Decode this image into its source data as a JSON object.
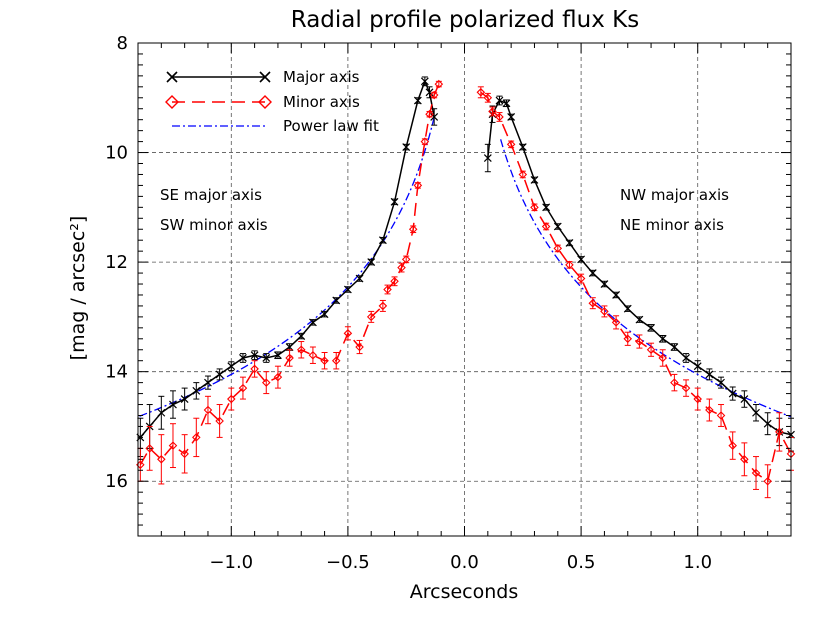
{
  "chart_data": {
    "type": "line",
    "title": "Radial profile polarized flux Ks",
    "xlabel": "Arcseconds",
    "ylabel": "[mag / arcsec²]",
    "xlim": [
      -1.4,
      1.4
    ],
    "ylim": [
      17,
      8
    ],
    "y_inverted": true,
    "grid": true,
    "legend_placement": "top-left",
    "x_ticks": [
      "−1.0",
      "−0.5",
      "0.0",
      "0.5",
      "1.0"
    ],
    "x_tick_values": [
      -1.0,
      -0.5,
      0.0,
      0.5,
      1.0
    ],
    "y_ticks": [
      "8",
      "10",
      "12",
      "14",
      "16"
    ],
    "y_tick_values": [
      8,
      10,
      12,
      14,
      16
    ],
    "annotations": {
      "left": [
        "SE major axis",
        "SW minor axis"
      ],
      "right": [
        "NW major axis",
        "NE minor axis"
      ]
    },
    "series": [
      {
        "name": "Major axis",
        "color": "#000000",
        "marker": "x",
        "segments": [
          {
            "x": [
              -1.39,
              -1.35,
              -1.3,
              -1.25,
              -1.2,
              -1.15,
              -1.1,
              -1.05,
              -1.0,
              -0.95,
              -0.9,
              -0.85,
              -0.8,
              -0.75,
              -0.7,
              -0.65,
              -0.6,
              -0.55,
              -0.5,
              -0.45,
              -0.4,
              -0.35,
              -0.3,
              -0.25,
              -0.2,
              -0.17,
              -0.15,
              -0.13
            ],
            "y": [
              15.2,
              15.0,
              14.75,
              14.6,
              14.5,
              14.35,
              14.2,
              14.05,
              13.9,
              13.75,
              13.7,
              13.75,
              13.7,
              13.55,
              13.35,
              13.1,
              12.95,
              12.7,
              12.5,
              12.3,
              12.0,
              11.6,
              10.9,
              9.9,
              9.05,
              8.7,
              8.9,
              9.35
            ],
            "err": [
              0.35,
              0.4,
              0.3,
              0.25,
              0.2,
              0.15,
              0.12,
              0.1,
              0.08,
              0.08,
              0.08,
              0.08,
              0.06,
              0.06,
              0.05,
              0.05,
              0.05,
              0.05,
              0.05,
              0.05,
              0.05,
              0.05,
              0.05,
              0.05,
              0.05,
              0.08,
              0.1,
              0.15
            ]
          },
          {
            "x": [
              0.1,
              0.12,
              0.15,
              0.18,
              0.2,
              0.25,
              0.3,
              0.35,
              0.4,
              0.45,
              0.5,
              0.55,
              0.6,
              0.65,
              0.7,
              0.75,
              0.8,
              0.85,
              0.9,
              0.95,
              1.0,
              1.05,
              1.1,
              1.15,
              1.2,
              1.25,
              1.3,
              1.35,
              1.4
            ],
            "y": [
              10.1,
              9.3,
              9.05,
              9.1,
              9.35,
              9.9,
              10.5,
              11.0,
              11.35,
              11.65,
              11.95,
              12.2,
              12.4,
              12.6,
              12.85,
              13.05,
              13.2,
              13.4,
              13.55,
              13.75,
              13.9,
              14.05,
              14.2,
              14.4,
              14.5,
              14.75,
              14.95,
              15.1,
              15.15
            ],
            "err": [
              0.25,
              0.15,
              0.08,
              0.06,
              0.05,
              0.05,
              0.05,
              0.05,
              0.05,
              0.05,
              0.05,
              0.05,
              0.05,
              0.05,
              0.05,
              0.05,
              0.06,
              0.06,
              0.06,
              0.08,
              0.1,
              0.1,
              0.1,
              0.12,
              0.15,
              0.15,
              0.2,
              0.25,
              0.3
            ]
          }
        ]
      },
      {
        "name": "Minor axis",
        "color": "#ff0000",
        "marker": "diamond",
        "segments": [
          {
            "x": [
              -1.39,
              -1.35,
              -1.3,
              -1.25,
              -1.2,
              -1.15,
              -1.1,
              -1.05,
              -1.0,
              -0.95,
              -0.9,
              -0.85,
              -0.8,
              -0.75,
              -0.7,
              -0.65,
              -0.6,
              -0.55,
              -0.5,
              -0.45,
              -0.4,
              -0.35
            ],
            "y": [
              15.7,
              15.4,
              15.6,
              15.35,
              15.5,
              15.2,
              14.7,
              14.9,
              14.5,
              14.3,
              13.95,
              14.2,
              14.1,
              13.75,
              13.6,
              13.7,
              13.8,
              13.8,
              13.3,
              13.55,
              13.0,
              12.8
            ],
            "err": [
              0.3,
              0.4,
              0.45,
              0.4,
              0.35,
              0.35,
              0.25,
              0.3,
              0.2,
              0.2,
              0.15,
              0.2,
              0.2,
              0.15,
              0.15,
              0.15,
              0.15,
              0.15,
              0.12,
              0.12,
              0.1,
              0.1
            ]
          },
          {
            "x": [
              -0.33,
              -0.3,
              -0.27,
              -0.25,
              -0.22,
              -0.2,
              -0.17,
              -0.15,
              -0.13,
              -0.11
            ],
            "y": [
              12.5,
              12.35,
              12.1,
              11.95,
              11.4,
              10.6,
              9.8,
              9.3,
              8.95,
              8.75
            ],
            "err": [
              0.08,
              0.08,
              0.08,
              0.06,
              0.06,
              0.05,
              0.05,
              0.05,
              0.05,
              0.05
            ]
          },
          {
            "x": [
              0.07,
              0.1,
              0.12,
              0.15,
              0.2,
              0.25,
              0.3,
              0.35,
              0.4,
              0.45,
              0.5,
              0.55,
              0.6,
              0.65,
              0.7,
              0.75,
              0.8,
              0.85,
              0.9,
              0.95,
              1.0,
              1.05,
              1.1,
              1.15,
              1.2,
              1.25,
              1.3,
              1.35,
              1.4
            ],
            "y": [
              8.9,
              9.0,
              9.25,
              9.35,
              9.85,
              10.4,
              11.0,
              11.35,
              11.75,
              12.05,
              12.3,
              12.75,
              12.9,
              13.1,
              13.4,
              13.45,
              13.6,
              13.75,
              14.2,
              14.3,
              14.5,
              14.7,
              14.8,
              15.35,
              15.6,
              15.85,
              16.0,
              15.1,
              15.5
            ],
            "err": [
              0.1,
              0.08,
              0.08,
              0.08,
              0.06,
              0.06,
              0.06,
              0.06,
              0.06,
              0.06,
              0.08,
              0.1,
              0.1,
              0.12,
              0.12,
              0.12,
              0.12,
              0.15,
              0.15,
              0.15,
              0.2,
              0.2,
              0.2,
              0.25,
              0.3,
              0.3,
              0.3,
              0.35,
              0.3
            ]
          }
        ]
      },
      {
        "name": "Power law fit",
        "color": "#0000ff",
        "marker": "none",
        "fit": {
          "y_at_1": 14.05,
          "slope_mag_per_dex": 5.3
        }
      }
    ]
  }
}
